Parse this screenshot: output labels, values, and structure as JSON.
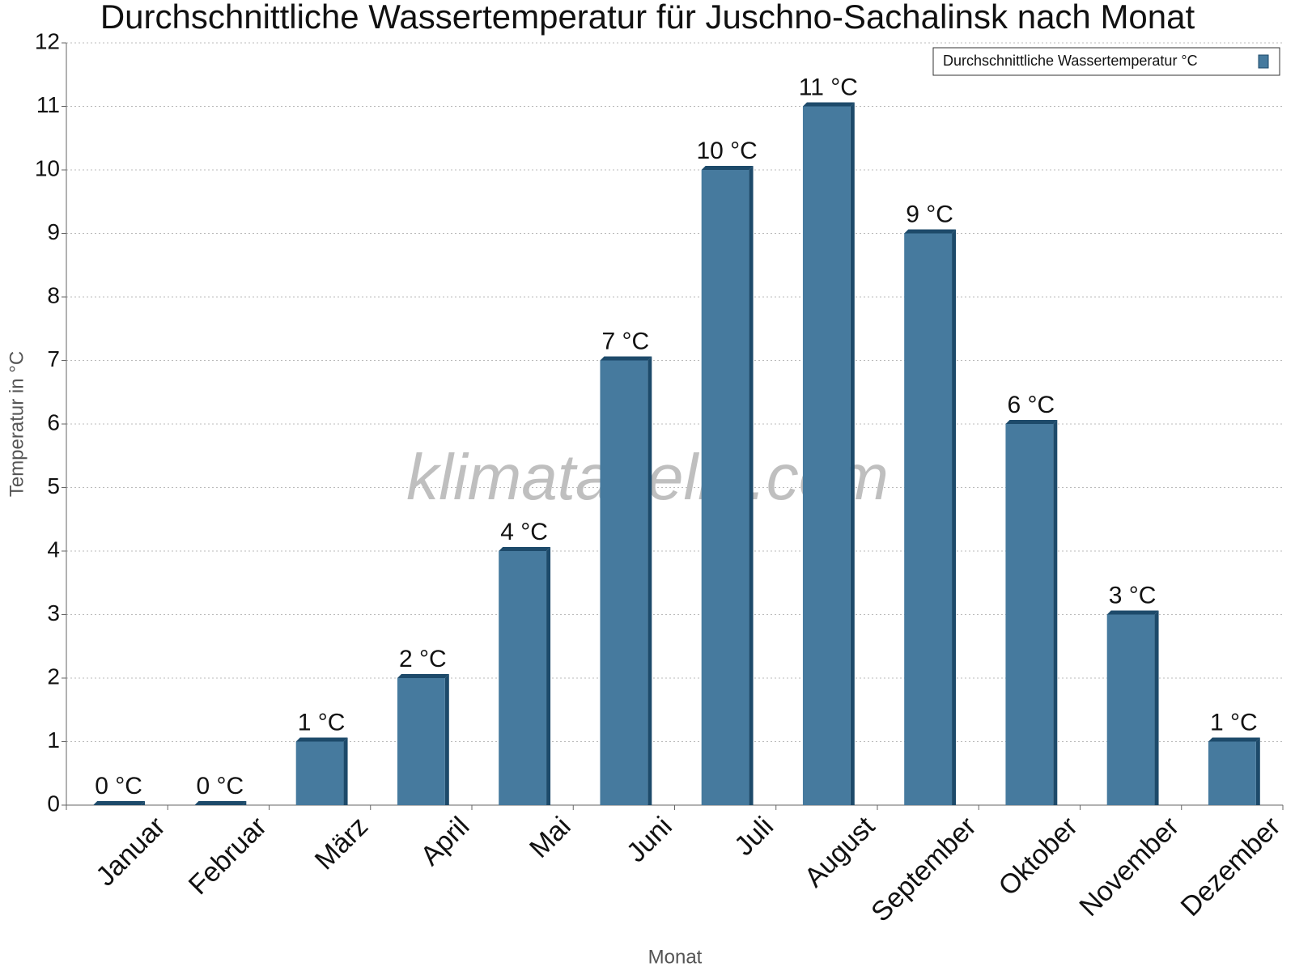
{
  "chart_data": {
    "type": "bar",
    "title": "Durchschnittliche Wassertemperatur für Juschno-Sachalinsk nach Monat",
    "x_label": "Monat",
    "y_label": "Temperatur in °C",
    "watermark": "klimatabelle.com",
    "categories": [
      "Januar",
      "Februar",
      "März",
      "April",
      "Mai",
      "Juni",
      "Juli",
      "August",
      "September",
      "Oktober",
      "November",
      "Dezember"
    ],
    "series": [
      {
        "name": "Durchschnittliche Wassertemperatur °C",
        "color": "#467a9e",
        "values": [
          0,
          0,
          1,
          2,
          4,
          7,
          10,
          11,
          9,
          6,
          3,
          1
        ],
        "value_labels": [
          "0 °C",
          "0 °C",
          "1 °C",
          "2 °C",
          "4 °C",
          "7 °C",
          "10 °C",
          "11 °C",
          "9 °C",
          "6 °C",
          "3 °C",
          "1 °C"
        ]
      }
    ],
    "ylim": [
      0,
      12
    ],
    "yticks": [
      0,
      1,
      2,
      3,
      4,
      5,
      6,
      7,
      8,
      9,
      10,
      11,
      12
    ],
    "grid": true,
    "legend": "top-right"
  }
}
